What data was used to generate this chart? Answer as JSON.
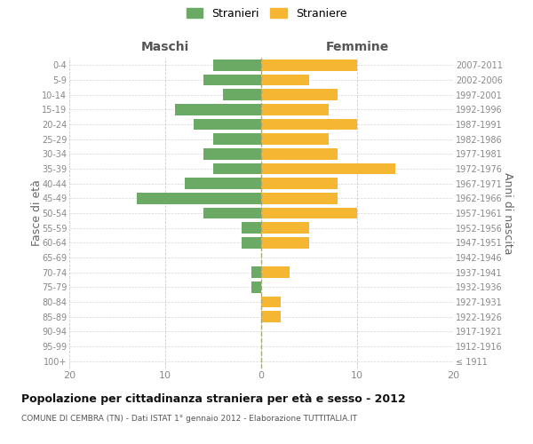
{
  "age_groups": [
    "100+",
    "95-99",
    "90-94",
    "85-89",
    "80-84",
    "75-79",
    "70-74",
    "65-69",
    "60-64",
    "55-59",
    "50-54",
    "45-49",
    "40-44",
    "35-39",
    "30-34",
    "25-29",
    "20-24",
    "15-19",
    "10-14",
    "5-9",
    "0-4"
  ],
  "birth_years": [
    "≤ 1911",
    "1912-1916",
    "1917-1921",
    "1922-1926",
    "1927-1931",
    "1932-1936",
    "1937-1941",
    "1942-1946",
    "1947-1951",
    "1952-1956",
    "1957-1961",
    "1962-1966",
    "1967-1971",
    "1972-1976",
    "1977-1981",
    "1982-1986",
    "1987-1991",
    "1992-1996",
    "1997-2001",
    "2002-2006",
    "2007-2011"
  ],
  "maschi": [
    0,
    0,
    0,
    0,
    0,
    1,
    1,
    0,
    2,
    2,
    6,
    13,
    8,
    5,
    6,
    5,
    7,
    9,
    4,
    6,
    5
  ],
  "femmine": [
    0,
    0,
    0,
    2,
    2,
    0,
    3,
    0,
    5,
    5,
    10,
    8,
    8,
    14,
    8,
    7,
    10,
    7,
    8,
    5,
    10
  ],
  "color_maschi": "#6aaa64",
  "color_femmine": "#f5b731",
  "title": "Popolazione per cittadinanza straniera per età e sesso - 2012",
  "subtitle": "COMUNE DI CEMBRA (TN) - Dati ISTAT 1° gennaio 2012 - Elaborazione TUTTITALIA.IT",
  "xlabel_left": "Maschi",
  "xlabel_right": "Femmine",
  "ylabel_left": "Fasce di età",
  "ylabel_right": "Anni di nascita",
  "legend_maschi": "Stranieri",
  "legend_femmine": "Straniere",
  "xlim": 20,
  "background_color": "#ffffff",
  "grid_color": "#cccccc",
  "tick_color": "#888888"
}
